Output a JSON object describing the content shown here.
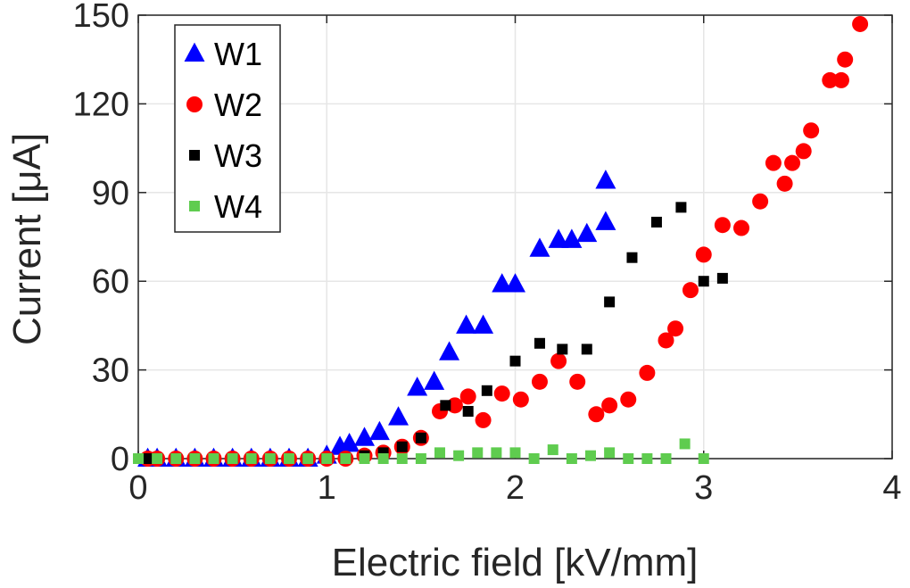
{
  "chart_data": {
    "type": "scatter",
    "title": "",
    "xlabel": "Electric field [kV/mm]",
    "ylabel": "Current [μA]",
    "xlim": [
      0,
      4
    ],
    "ylim": [
      0,
      150
    ],
    "xticks": [
      0,
      1,
      2,
      3,
      4
    ],
    "yticks": [
      0,
      30,
      60,
      90,
      120,
      150
    ],
    "grid": true,
    "legend_position": "top-left",
    "series": [
      {
        "name": "W1",
        "marker": "triangle",
        "color": "#0000ff",
        "x": [
          0.05,
          0.1,
          0.2,
          0.3,
          0.4,
          0.5,
          0.6,
          0.7,
          0.8,
          0.9,
          1.0,
          1.07,
          1.12,
          1.2,
          1.28,
          1.38,
          1.48,
          1.57,
          1.65,
          1.74,
          1.83,
          1.93,
          2.0,
          2.13,
          2.23,
          2.3,
          2.38,
          2.48,
          2.48
        ],
        "y": [
          0,
          0,
          0,
          0,
          0,
          0,
          0,
          0,
          0,
          0,
          1,
          4,
          5,
          7,
          9,
          14,
          24,
          26,
          36,
          45,
          45,
          59,
          59,
          71,
          74,
          74,
          76,
          80,
          94
        ]
      },
      {
        "name": "W2",
        "marker": "circle",
        "color": "#ff0000",
        "x": [
          0.05,
          0.1,
          0.2,
          0.3,
          0.4,
          0.5,
          0.6,
          0.7,
          0.8,
          0.9,
          1.0,
          1.1,
          1.2,
          1.3,
          1.4,
          1.5,
          1.6,
          1.68,
          1.75,
          1.83,
          1.93,
          2.03,
          2.13,
          2.23,
          2.33,
          2.43,
          2.5,
          2.6,
          2.7,
          2.8,
          2.85,
          2.93,
          3.0,
          3.1,
          3.2,
          3.3,
          3.37,
          3.43,
          3.47,
          3.53,
          3.57,
          3.67,
          3.73,
          3.75,
          3.83
        ],
        "y": [
          0,
          0,
          0,
          0,
          0,
          0,
          0,
          0,
          0,
          0,
          0,
          0,
          1,
          2,
          4,
          7,
          16,
          18,
          21,
          13,
          22,
          20,
          26,
          33,
          26,
          15,
          18,
          20,
          29,
          40,
          44,
          57,
          69,
          79,
          78,
          87,
          100,
          93,
          100,
          104,
          111,
          128,
          128,
          135,
          147
        ]
      },
      {
        "name": "W3",
        "marker": "square",
        "color": "#000000",
        "x": [
          0.05,
          0.1,
          0.2,
          0.3,
          0.4,
          0.5,
          0.6,
          0.7,
          0.8,
          0.9,
          1.0,
          1.1,
          1.2,
          1.3,
          1.4,
          1.5,
          1.63,
          1.75,
          1.85,
          2.0,
          2.13,
          2.25,
          2.38,
          2.5,
          2.62,
          2.75,
          2.88,
          3.0,
          3.1
        ],
        "y": [
          0,
          0,
          0,
          0,
          0,
          0,
          0,
          0,
          0,
          0,
          0,
          0,
          1,
          2,
          4,
          7,
          18,
          16,
          23,
          33,
          39,
          37,
          37,
          53,
          68,
          80,
          85,
          60,
          61
        ]
      },
      {
        "name": "W4",
        "marker": "square",
        "color": "#5fcc4f",
        "x": [
          0.0,
          0.1,
          0.2,
          0.3,
          0.4,
          0.5,
          0.6,
          0.7,
          0.8,
          0.9,
          1.0,
          1.1,
          1.2,
          1.3,
          1.4,
          1.5,
          1.6,
          1.7,
          1.8,
          1.9,
          2.0,
          2.1,
          2.2,
          2.3,
          2.4,
          2.5,
          2.6,
          2.7,
          2.8,
          2.9,
          3.0
        ],
        "y": [
          0,
          0,
          0,
          0,
          0,
          0,
          0,
          0,
          0,
          0,
          0,
          0,
          0,
          0,
          0,
          0,
          2,
          1,
          2,
          2,
          2,
          0,
          3,
          0,
          1,
          2,
          0,
          0,
          0,
          5,
          0
        ]
      }
    ]
  }
}
